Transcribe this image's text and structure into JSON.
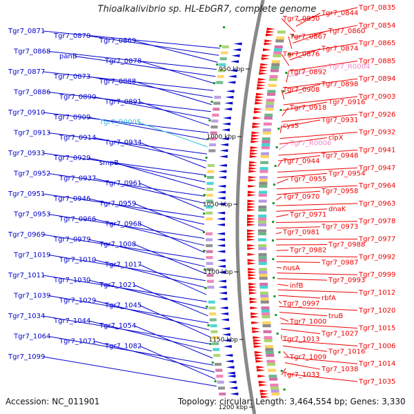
{
  "title": "Thioalkalivibrio sp. HL-EbGR7, complete genome",
  "footer": {
    "accession": "Accession: NC_011901",
    "topology": "Topology: circular; Length: 3,464,554 bp; Genes: 3,330"
  },
  "colors": {
    "plus_strand": "#0000cc",
    "minus_strand": "#ee0000",
    "rna": "#33bbdd",
    "trna_minus": "#ee88cc",
    "backbone": "#888888",
    "ticks": "#111111"
  },
  "scale_marks": [
    "950 kbp",
    "1000 kbp",
    "1050 kbp",
    "1100 kbp",
    "1150 kbp",
    "1200 kbp"
  ],
  "left_labels": [
    "Tgr7_0871",
    "Tgr7_0870",
    "Tgr7_0869",
    "Tgr7_0868",
    "panB",
    "Tgr7_0878",
    "Tgr7_0877",
    "Tgr7_0873",
    "Tgr7_0888",
    "Tgr7_0886",
    "Tgr7_0890",
    "Tgr7_0891",
    "Tgr7_0910",
    "Tgr7_0909",
    "Tgr7_R0005",
    "Tgr7_0913",
    "Tgr7_0914",
    "Tgr7_0934",
    "Tgr7_0933",
    "Tgr7_0929",
    "smpB",
    "Tgr7_0952",
    "Tgr7_0937",
    "Tgr7_0961",
    "Tgr7_0951",
    "Tgr7_0946",
    "Tgr7_0959",
    "Tgr7_0953",
    "Tgr7_0966",
    "Tgr7_0968",
    "Tgr7_0969",
    "Tgr7_0979",
    "Tgr7_1008",
    "Tgr7_1019",
    "Tgr7_1010",
    "Tgr7_1017",
    "Tgr7_1011",
    "Tgr7_1030",
    "Tgr7_1021",
    "Tgr7_1039",
    "Tgr7_1029",
    "Tgr7_1045",
    "Tgr7_1034",
    "Tgr7_1044",
    "Tgr7_1054",
    "Tgr7_1064",
    "Tgr7_1071",
    "Tgr7_1082",
    "Tgr7_1099"
  ],
  "right_labels": [
    "Tgr7_0835",
    "Tgr7_0844",
    "Tgr7_0850",
    "Tgr7_0854",
    "Tgr7_0860",
    "Tgr7_0867",
    "Tgr7_0865",
    "Tgr7_0874",
    "Tgr7_0876",
    "Tgr7_0885",
    "Tgr7_R0004",
    "Tgr7_0892",
    "Tgr7_0894",
    "Tgr7_0898",
    "Tgr7_0908",
    "Tgr7_0903",
    "Tgr7_0916",
    "Tgr7_0918",
    "Tgr7_0926",
    "Tgr7_0931",
    "cysS",
    "Tgr7_0932",
    "clpX",
    "Tgr7_R0006",
    "Tgr7_0941",
    "Tgr7_0948",
    "Tgr7_0944",
    "Tgr7_0947",
    "Tgr7_0954",
    "Tgr7_0955",
    "Tgr7_0964",
    "Tgr7_0958",
    "Tgr7_0970",
    "Tgr7_0963",
    "dnaK",
    "Tgr7_0971",
    "Tgr7_0978",
    "Tgr7_0973",
    "Tgr7_0981",
    "Tgr7_0977",
    "Tgr7_0988",
    "Tgr7_0982",
    "Tgr7_0992",
    "Tgr7_0987",
    "nusA",
    "Tgr7_0999",
    "Tgr7_0993",
    "infB",
    "Tgr7_1012",
    "rbfA",
    "Tgr7_0997",
    "Tgr7_1020",
    "truB",
    "Tgr7_1000",
    "Tgr7_1015",
    "Tgr7_1027",
    "Tgr7_1013",
    "Tgr7_1006",
    "Tgr7_1016",
    "Tgr7_1009",
    "Tgr7_1014",
    "Tgr7_1038",
    "Tgr7_1033",
    "Tgr7_1035"
  ]
}
